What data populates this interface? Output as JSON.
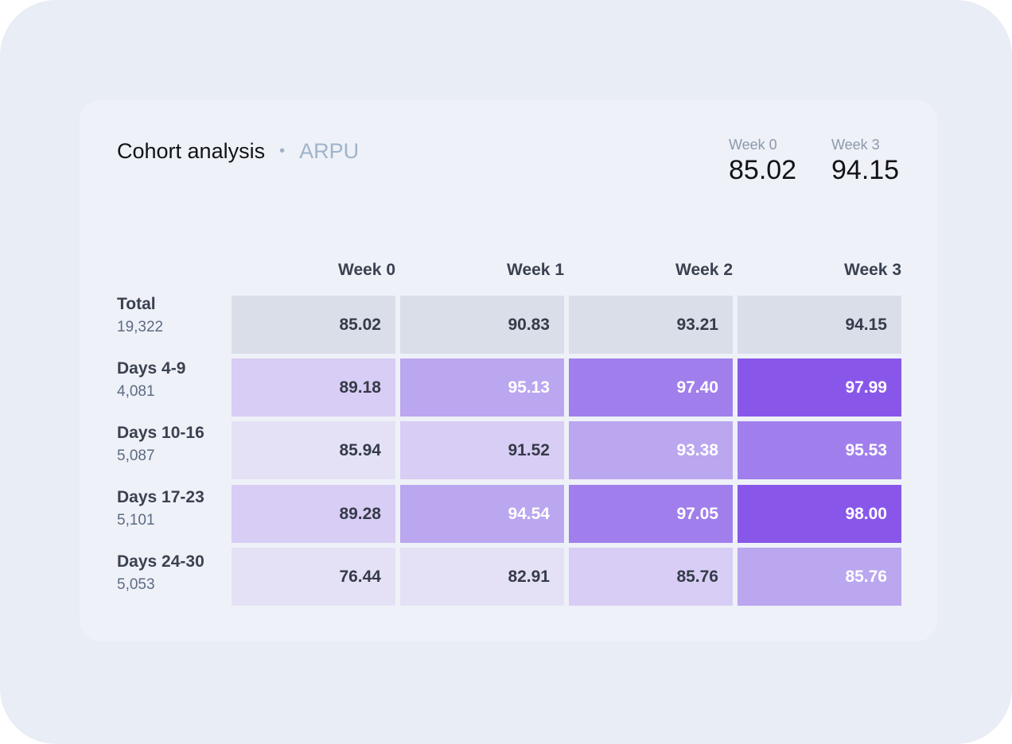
{
  "header": {
    "title": "Cohort analysis",
    "separator": "•",
    "metric": "ARPU"
  },
  "kpis": [
    {
      "label": "Week 0",
      "value": "85.02"
    },
    {
      "label": "Week 3",
      "value": "94.15"
    }
  ],
  "colors": {
    "background": "#e9edf5",
    "card": "#eef1f7",
    "total_row": "#d9dee9",
    "scale": [
      "#e4e1f6",
      "#d8cdf4",
      "#bba6f0",
      "#a07fec",
      "#8857ea"
    ],
    "dark_text": "#353b49",
    "light_text": "#ffffff"
  },
  "chart_data": {
    "type": "heatmap",
    "title": "Cohort analysis",
    "metric": "ARPU",
    "columns": [
      "Week 0",
      "Week 1",
      "Week 2",
      "Week 3"
    ],
    "rows": [
      {
        "name": "Total",
        "count": "19,322",
        "values": [
          "85.02",
          "90.83",
          "93.21",
          "94.15"
        ],
        "levels": [
          -1,
          -1,
          -1,
          -1
        ]
      },
      {
        "name": "Days 4-9",
        "count": "4,081",
        "values": [
          "89.18",
          "95.13",
          "97.40",
          "97.99"
        ],
        "levels": [
          1,
          2,
          3,
          4
        ]
      },
      {
        "name": "Days 10-16",
        "count": "5,087",
        "values": [
          "85.94",
          "91.52",
          "93.38",
          "95.53"
        ],
        "levels": [
          0,
          1,
          2,
          3
        ]
      },
      {
        "name": "Days 17-23",
        "count": "5,101",
        "values": [
          "89.28",
          "94.54",
          "97.05",
          "98.00"
        ],
        "levels": [
          1,
          2,
          3,
          4
        ]
      },
      {
        "name": "Days 24-30",
        "count": "5,053",
        "values": [
          "76.44",
          "82.91",
          "85.76",
          "85.76"
        ],
        "levels": [
          0,
          0,
          1,
          2
        ]
      }
    ]
  }
}
